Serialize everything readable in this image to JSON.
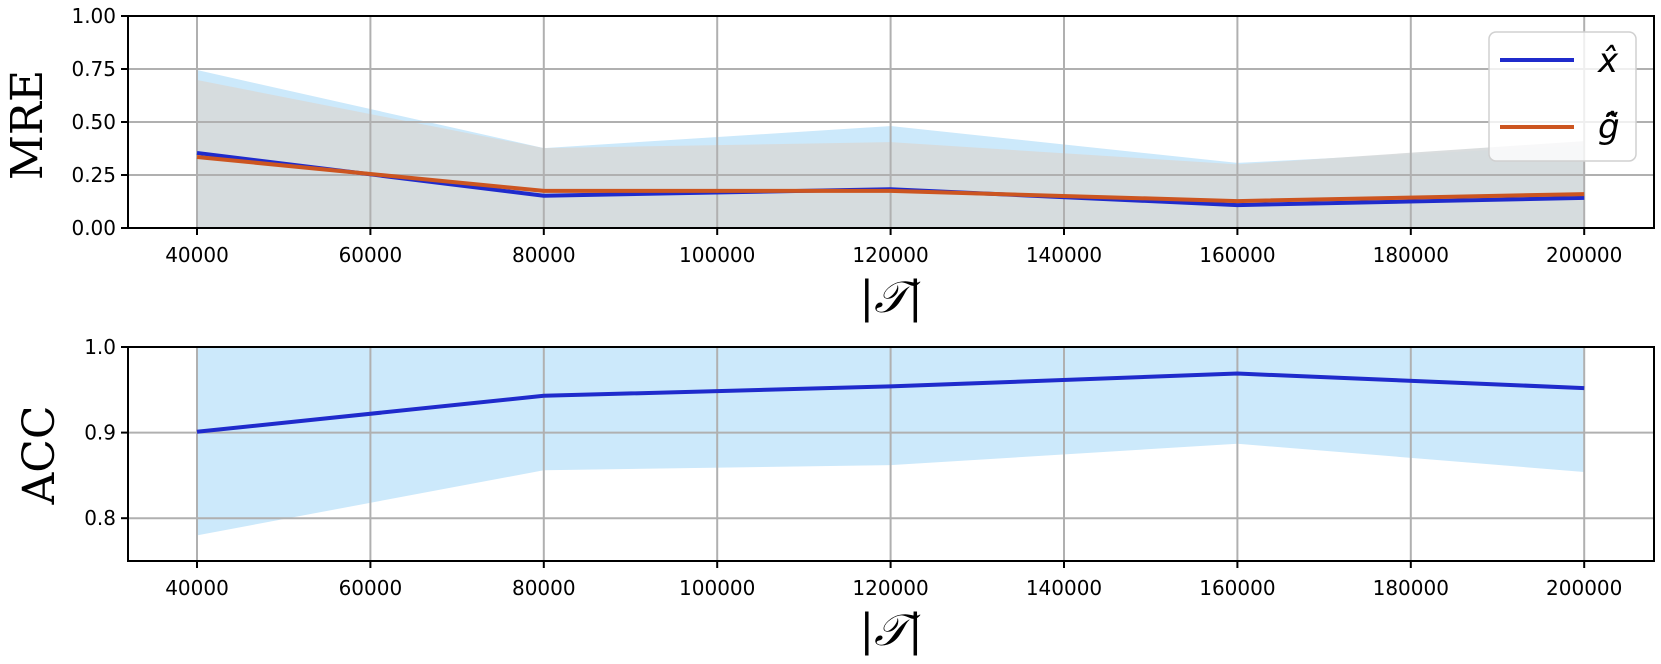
{
  "chart_data": [
    {
      "type": "line",
      "panel": "top",
      "title": "",
      "xlabel": "|𝒯|",
      "ylabel": "MRE",
      "x": [
        40000,
        80000,
        120000,
        160000,
        200000
      ],
      "xticks": [
        40000,
        60000,
        80000,
        100000,
        120000,
        140000,
        160000,
        180000,
        200000
      ],
      "xtick_labels": [
        "40000",
        "60000",
        "80000",
        "100000",
        "120000",
        "140000",
        "160000",
        "180000",
        "200000"
      ],
      "yticks": [
        0.0,
        0.25,
        0.5,
        0.75,
        1.0
      ],
      "ytick_labels": [
        "0.00",
        "0.25",
        "0.50",
        "0.75",
        "1.00"
      ],
      "ylim": [
        0.0,
        1.0
      ],
      "grid": true,
      "legend_position": "upper right",
      "series": [
        {
          "name": "x̂",
          "color": "#1f2bcc",
          "band_color": "#cce9fb",
          "values": [
            0.354,
            0.152,
            0.183,
            0.108,
            0.142
          ],
          "band_lower": [
            0.0,
            0.0,
            0.0,
            0.0,
            0.0
          ],
          "band_upper": [
            0.745,
            0.377,
            0.481,
            0.307,
            0.39
          ]
        },
        {
          "name": "g̃̂",
          "color": "#cc5520",
          "band_color": "#fde8d8",
          "values": [
            0.335,
            0.175,
            0.175,
            0.127,
            0.16
          ],
          "band_lower": [
            0.0,
            0.0,
            0.0,
            0.0,
            0.0
          ],
          "band_upper": [
            0.698,
            0.377,
            0.405,
            0.3,
            0.41
          ]
        }
      ],
      "overlap_color": "#d7dadb"
    },
    {
      "type": "line",
      "panel": "bottom",
      "title": "",
      "xlabel": "|𝒯|",
      "ylabel": "ACC",
      "x": [
        40000,
        80000,
        120000,
        160000,
        200000
      ],
      "xticks": [
        40000,
        60000,
        80000,
        100000,
        120000,
        140000,
        160000,
        180000,
        200000
      ],
      "xtick_labels": [
        "40000",
        "60000",
        "80000",
        "100000",
        "120000",
        "140000",
        "160000",
        "180000",
        "200000"
      ],
      "yticks": [
        0.8,
        0.9,
        1.0
      ],
      "ytick_labels": [
        "0.8",
        "0.9",
        "1.0"
      ],
      "ylim": [
        0.75,
        1.0
      ],
      "grid": true,
      "series": [
        {
          "name": "x̂",
          "color": "#1f2bcc",
          "band_color": "#cce9fb",
          "values": [
            0.901,
            0.943,
            0.954,
            0.969,
            0.952
          ],
          "band_lower": [
            0.78,
            0.856,
            0.862,
            0.887,
            0.854
          ],
          "band_upper": [
            1.0,
            1.0,
            1.0,
            1.0,
            1.0
          ]
        }
      ]
    }
  ],
  "legend": {
    "items": [
      {
        "label": "x̂",
        "color": "#1f2bcc"
      },
      {
        "label": "g̃̂",
        "color": "#cc5520"
      }
    ]
  },
  "labels": {
    "top_ylabel": "MRE",
    "bottom_ylabel": "ACC",
    "top_xlabel": "|𝒯|",
    "bottom_xlabel": "|𝒯|"
  }
}
